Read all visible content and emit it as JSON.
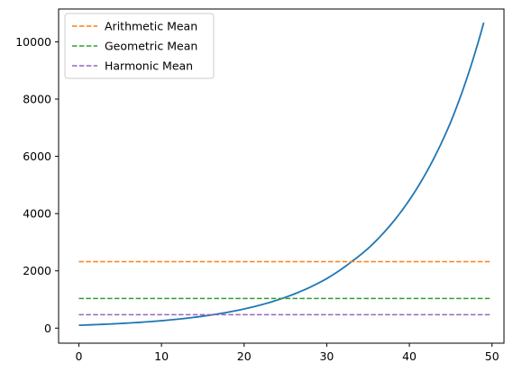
{
  "chart_data": {
    "type": "line",
    "title": "",
    "xlabel": "",
    "ylabel": "",
    "xlim": [
      -2.45,
      51.45
    ],
    "ylim": [
      -526,
      11146
    ],
    "x_ticks": [
      0,
      10,
      20,
      30,
      40,
      50
    ],
    "y_ticks": [
      0,
      2000,
      4000,
      6000,
      8000,
      10000
    ],
    "grid": false,
    "legend_position": "top-left",
    "series": [
      {
        "key": "curve",
        "kind": "exponential",
        "color": "#1f77b4",
        "x_start": 0,
        "x_end": 49,
        "points": [
          [
            0,
            100
          ],
          [
            5,
            161
          ],
          [
            10,
            259
          ],
          [
            15,
            416
          ],
          [
            20,
            669
          ],
          [
            25,
            1076
          ],
          [
            30,
            1730
          ],
          [
            33,
            2320
          ],
          [
            35,
            2782
          ],
          [
            40,
            4474
          ],
          [
            45,
            7194
          ],
          [
            49,
            10670
          ]
        ]
      },
      {
        "name": "Arithmetic Mean",
        "kind": "hline",
        "y": 2320,
        "x_range": [
          0,
          50
        ],
        "color": "#ff7f0e",
        "dash": "dashed"
      },
      {
        "name": "Geometric Mean",
        "kind": "hline",
        "y": 1035,
        "x_range": [
          0,
          50
        ],
        "color": "#2ca02c",
        "dash": "dashed"
      },
      {
        "name": "Harmonic Mean",
        "kind": "hline",
        "y": 470,
        "x_range": [
          0,
          50
        ],
        "color": "#9467bd",
        "dash": "dashed"
      }
    ]
  }
}
